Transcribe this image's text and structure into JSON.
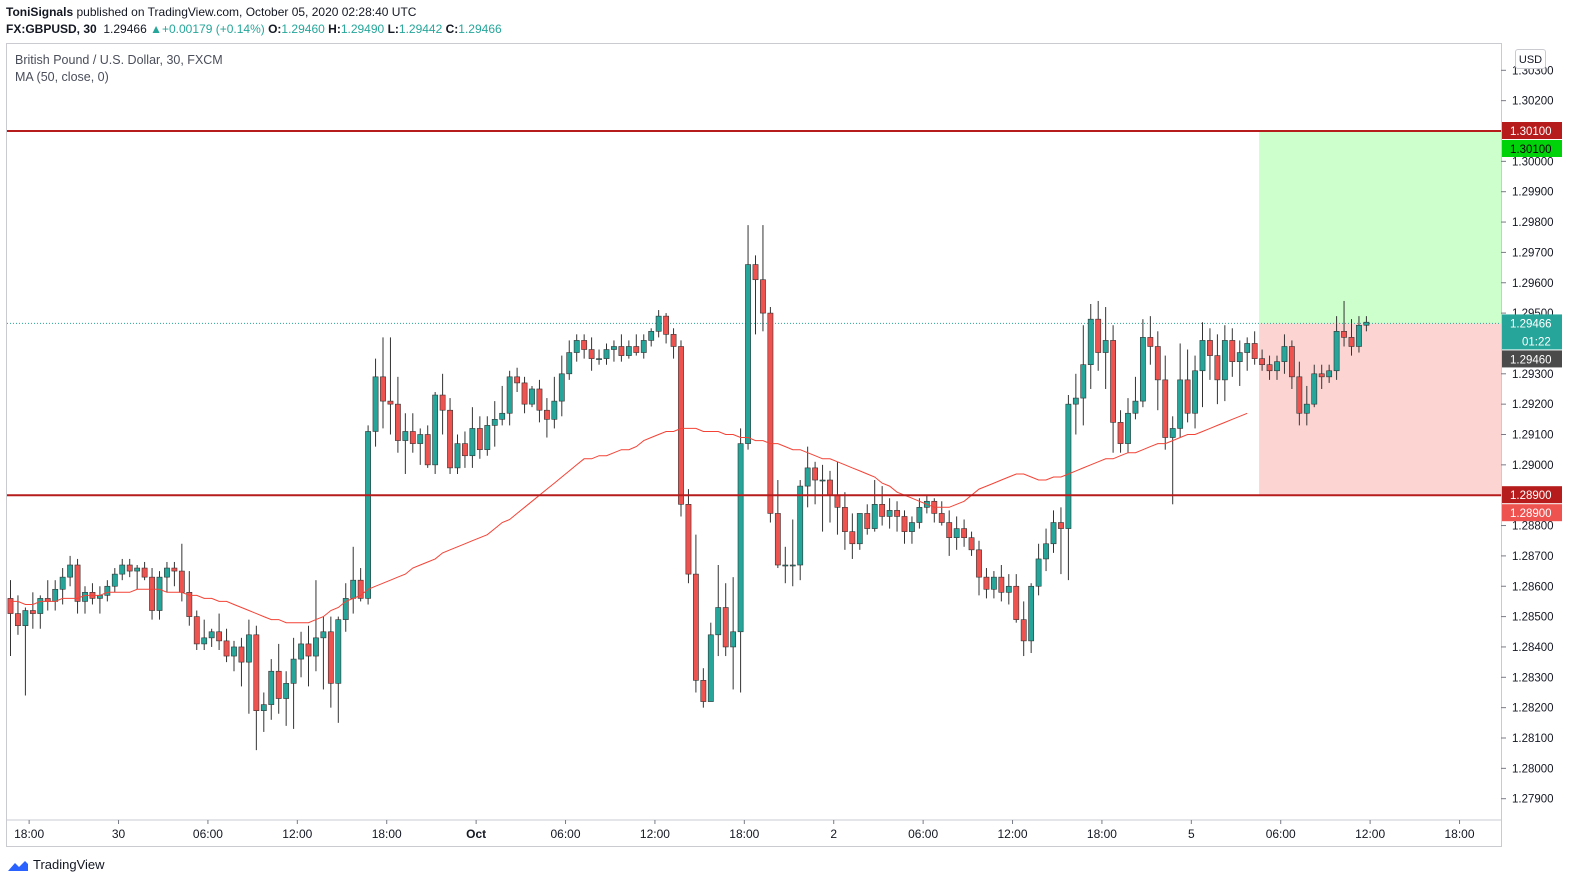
{
  "header": {
    "author": "ToniSignals",
    "published_text": "published on TradingView.com, October 05, 2020 02:28:40 UTC",
    "symbol": "FX:GBPUSD, 30",
    "last": "1.29466",
    "change": "+0.00179 (+0.14%)",
    "o_label": "O:",
    "o": "1.29460",
    "h_label": "H:",
    "h": "1.29490",
    "l_label": "L:",
    "l": "1.29442",
    "c_label": "C:",
    "c": "1.29466"
  },
  "legend": {
    "title": "British Pound / U.S. Dollar, 30, FXCM",
    "indicator": "MA (50, close, 0)"
  },
  "currency_button": "USD",
  "brand": "TradingView",
  "colors": {
    "up": "#26a69a",
    "down": "#ef5350",
    "ma": "#f44336",
    "level": "#b71c1c",
    "target_zone": "#ccffcc",
    "stop_zone": "#fcd5d3",
    "target_tag": "#00d20a",
    "last_tag": "#26a69a",
    "prev_tag": "#4a4a4a"
  },
  "chart_data": {
    "type": "candlestick",
    "symbol": "GBPUSD",
    "timeframe": "30",
    "y_ticks": [
      "1.27900",
      "1.28000",
      "1.28100",
      "1.28200",
      "1.28300",
      "1.28400",
      "1.28500",
      "1.28600",
      "1.28700",
      "1.28800",
      "1.29000",
      "1.29100",
      "1.29200",
      "1.29300",
      "1.29500",
      "1.29600",
      "1.29700",
      "1.29800",
      "1.29900",
      "1.30000",
      "1.30200",
      "1.30300"
    ],
    "x_ticks": [
      {
        "label": "18:00",
        "bar": 2.5
      },
      {
        "label": "30",
        "bar": 14.5
      },
      {
        "label": "06:00",
        "bar": 26.5
      },
      {
        "label": "12:00",
        "bar": 38.5
      },
      {
        "label": "18:00",
        "bar": 50.5
      },
      {
        "label": "Oct",
        "bar": 62.5
      },
      {
        "label": "06:00",
        "bar": 74.5
      },
      {
        "label": "12:00",
        "bar": 86.5
      },
      {
        "label": "18:00",
        "bar": 98.5
      },
      {
        "label": "2",
        "bar": 110.5
      },
      {
        "label": "06:00",
        "bar": 122.5
      },
      {
        "label": "12:00",
        "bar": 134.5
      },
      {
        "label": "18:00",
        "bar": 146.5
      },
      {
        "label": "5",
        "bar": 158.5
      },
      {
        "label": "06:00",
        "bar": 170.5
      },
      {
        "label": "12:00",
        "bar": 182.5
      },
      {
        "label": "18:00",
        "bar": 194.5
      }
    ],
    "levels": [
      {
        "price": 1.301,
        "label": "1.30100"
      },
      {
        "price": 1.289,
        "label": "1.28900"
      }
    ],
    "position": {
      "entry": 1.29466,
      "target": 1.301,
      "stop": 1.289,
      "start_bar": 168,
      "end_bar": 200,
      "target_label": "1.30100",
      "stop_label": "1.28900"
    },
    "last_price": {
      "value": 1.29466,
      "label": "1.29466",
      "countdown": "01:22"
    },
    "prev_price": {
      "value": 1.2946,
      "label": "1.29460"
    },
    "ma": {
      "name": "MA (50, close, 0)",
      "period": 50
    },
    "ma_values": [
      1.2855,
      1.2855,
      1.2854,
      1.2854,
      1.2855,
      1.2855,
      1.2855,
      1.2856,
      1.2856,
      1.2856,
      1.2857,
      1.2857,
      1.2857,
      1.2858,
      1.2858,
      1.2858,
      1.2858,
      1.2859,
      1.2859,
      1.2859,
      1.2859,
      1.2858,
      1.2858,
      1.2858,
      1.2857,
      1.2857,
      1.2856,
      1.2856,
      1.2855,
      1.2855,
      1.2854,
      1.2853,
      1.2852,
      1.2851,
      1.285,
      1.2849,
      1.2849,
      1.2848,
      1.2848,
      1.2848,
      1.2848,
      1.2849,
      1.285,
      1.2852,
      1.2853,
      1.2855,
      1.2856,
      1.2857,
      1.2859,
      1.286,
      1.2861,
      1.2862,
      1.2863,
      1.2864,
      1.2866,
      1.2867,
      1.2868,
      1.2869,
      1.2871,
      1.2872,
      1.2873,
      1.2874,
      1.2875,
      1.2876,
      1.2877,
      1.2879,
      1.2881,
      1.2882,
      1.2884,
      1.2886,
      1.2888,
      1.289,
      1.2892,
      1.2894,
      1.2896,
      1.2898,
      1.29,
      1.2902,
      1.2902,
      1.2903,
      1.2903,
      1.2904,
      1.2905,
      1.2905,
      1.2906,
      1.2908,
      1.2909,
      1.291,
      1.2911,
      1.2911,
      1.2912,
      1.2912,
      1.2912,
      1.2911,
      1.2911,
      1.2911,
      1.291,
      1.291,
      1.2909,
      1.2909,
      1.2908,
      1.2908,
      1.2907,
      1.2907,
      1.2906,
      1.2905,
      1.2905,
      1.2904,
      1.2903,
      1.2902,
      1.2902,
      1.2901,
      1.29,
      1.2899,
      1.2898,
      1.2897,
      1.2896,
      1.2894,
      1.2893,
      1.2891,
      1.289,
      1.2889,
      1.2888,
      1.2887,
      1.2886,
      1.2886,
      1.2886,
      1.2887,
      1.2888,
      1.289,
      1.2892,
      1.2893,
      1.2894,
      1.2895,
      1.2896,
      1.2897,
      1.2897,
      1.2896,
      1.2895,
      1.2895,
      1.2896,
      1.2896,
      1.2897,
      1.2898,
      1.2899,
      1.29,
      1.2901,
      1.2902,
      1.2902,
      1.2903,
      1.2904,
      1.2904,
      1.2905,
      1.2906,
      1.2907,
      1.2907,
      1.2908,
      1.2909,
      1.291,
      1.291,
      1.2911,
      1.2912,
      1.2913,
      1.2914,
      1.2915,
      1.2916,
      1.2917
    ],
    "ohlc": [
      [
        1.2856,
        1.2862,
        1.2837,
        1.2851
      ],
      [
        1.2851,
        1.2857,
        1.2844,
        1.2847
      ],
      [
        1.2847,
        1.2853,
        1.2824,
        1.2852
      ],
      [
        1.2852,
        1.2858,
        1.2846,
        1.2851
      ],
      [
        1.2851,
        1.2857,
        1.2846,
        1.2856
      ],
      [
        1.2856,
        1.2862,
        1.2852,
        1.2855
      ],
      [
        1.2855,
        1.2862,
        1.2852,
        1.2859
      ],
      [
        1.2859,
        1.2866,
        1.2854,
        1.2863
      ],
      [
        1.2863,
        1.287,
        1.286,
        1.2867
      ],
      [
        1.2867,
        1.2869,
        1.2851,
        1.2855
      ],
      [
        1.2855,
        1.286,
        1.2851,
        1.2858
      ],
      [
        1.2858,
        1.2861,
        1.2854,
        1.2856
      ],
      [
        1.2856,
        1.286,
        1.2851,
        1.2857
      ],
      [
        1.2857,
        1.2862,
        1.2855,
        1.286
      ],
      [
        1.286,
        1.2866,
        1.2858,
        1.2864
      ],
      [
        1.2864,
        1.2869,
        1.2862,
        1.2867
      ],
      [
        1.2867,
        1.2869,
        1.2863,
        1.2865
      ],
      [
        1.2865,
        1.2867,
        1.2859,
        1.2866
      ],
      [
        1.2866,
        1.2868,
        1.2862,
        1.2863
      ],
      [
        1.2863,
        1.2866,
        1.2849,
        1.2852
      ],
      [
        1.2852,
        1.2865,
        1.2849,
        1.2863
      ],
      [
        1.2863,
        1.2868,
        1.2858,
        1.2866
      ],
      [
        1.2866,
        1.2868,
        1.286,
        1.2865
      ],
      [
        1.2865,
        1.2874,
        1.2855,
        1.2858
      ],
      [
        1.2858,
        1.2865,
        1.2847,
        1.285
      ],
      [
        1.285,
        1.2852,
        1.2839,
        1.2841
      ],
      [
        1.2841,
        1.2849,
        1.2839,
        1.2843
      ],
      [
        1.2843,
        1.2846,
        1.284,
        1.2845
      ],
      [
        1.2845,
        1.2851,
        1.2839,
        1.2842
      ],
      [
        1.2842,
        1.2846,
        1.2835,
        1.2837
      ],
      [
        1.2837,
        1.2842,
        1.2832,
        1.284
      ],
      [
        1.284,
        1.2843,
        1.2827,
        1.2835
      ],
      [
        1.2835,
        1.2849,
        1.2818,
        1.2844
      ],
      [
        1.2844,
        1.2847,
        1.2806,
        1.2819
      ],
      [
        1.2819,
        1.2825,
        1.2812,
        1.2821
      ],
      [
        1.2821,
        1.2836,
        1.2816,
        1.2832
      ],
      [
        1.2832,
        1.2841,
        1.2818,
        1.2823
      ],
      [
        1.2823,
        1.2832,
        1.2814,
        1.2828
      ],
      [
        1.2828,
        1.2843,
        1.2813,
        1.2836
      ],
      [
        1.2836,
        1.2845,
        1.283,
        1.2841
      ],
      [
        1.2841,
        1.2847,
        1.2827,
        1.2837
      ],
      [
        1.2837,
        1.2862,
        1.2832,
        1.2843
      ],
      [
        1.2843,
        1.285,
        1.2826,
        1.2845
      ],
      [
        1.2845,
        1.285,
        1.282,
        1.2828
      ],
      [
        1.2828,
        1.285,
        1.2815,
        1.2849
      ],
      [
        1.2849,
        1.2861,
        1.2845,
        1.2856
      ],
      [
        1.2856,
        1.2873,
        1.2851,
        1.2862
      ],
      [
        1.2862,
        1.2866,
        1.2855,
        1.2856
      ],
      [
        1.2856,
        1.2913,
        1.2854,
        1.2911
      ],
      [
        1.2911,
        1.2935,
        1.2906,
        1.2929
      ],
      [
        1.2929,
        1.2942,
        1.2912,
        1.2921
      ],
      [
        1.2921,
        1.2942,
        1.291,
        1.292
      ],
      [
        1.292,
        1.2929,
        1.2904,
        1.2908
      ],
      [
        1.2908,
        1.2917,
        1.2897,
        1.2911
      ],
      [
        1.2911,
        1.2917,
        1.2904,
        1.2907
      ],
      [
        1.2907,
        1.2912,
        1.29,
        1.291
      ],
      [
        1.291,
        1.2913,
        1.2899,
        1.29
      ],
      [
        1.29,
        1.2924,
        1.2897,
        1.2923
      ],
      [
        1.2923,
        1.293,
        1.291,
        1.2918
      ],
      [
        1.2918,
        1.2922,
        1.2897,
        1.2899
      ],
      [
        1.2899,
        1.291,
        1.2897,
        1.2907
      ],
      [
        1.2907,
        1.2911,
        1.2899,
        1.2903
      ],
      [
        1.2903,
        1.2919,
        1.2899,
        1.2912
      ],
      [
        1.2912,
        1.2916,
        1.2902,
        1.2905
      ],
      [
        1.2905,
        1.2916,
        1.2903,
        1.2913
      ],
      [
        1.2913,
        1.2921,
        1.2906,
        1.2915
      ],
      [
        1.2915,
        1.2926,
        1.2913,
        1.2917
      ],
      [
        1.2917,
        1.2931,
        1.2913,
        1.2929
      ],
      [
        1.2929,
        1.2932,
        1.2924,
        1.2927
      ],
      [
        1.2927,
        1.2929,
        1.2917,
        1.292
      ],
      [
        1.292,
        1.2926,
        1.2919,
        1.2925
      ],
      [
        1.2925,
        1.2928,
        1.2914,
        1.2918
      ],
      [
        1.2918,
        1.2922,
        1.2909,
        1.2915
      ],
      [
        1.2915,
        1.2929,
        1.2912,
        1.2921
      ],
      [
        1.2921,
        1.2936,
        1.2916,
        1.293
      ],
      [
        1.293,
        1.2941,
        1.2928,
        1.2937
      ],
      [
        1.2937,
        1.2943,
        1.2934,
        1.2941
      ],
      [
        1.2941,
        1.2943,
        1.2935,
        1.2938
      ],
      [
        1.2938,
        1.2942,
        1.2931,
        1.2935
      ],
      [
        1.2935,
        1.2938,
        1.2933,
        1.2935
      ],
      [
        1.2935,
        1.294,
        1.2933,
        1.2938
      ],
      [
        1.2938,
        1.2941,
        1.2934,
        1.2939
      ],
      [
        1.2939,
        1.2943,
        1.2934,
        1.2936
      ],
      [
        1.2936,
        1.2941,
        1.2935,
        1.2939
      ],
      [
        1.2939,
        1.2943,
        1.2936,
        1.2937
      ],
      [
        1.2937,
        1.2943,
        1.2935,
        1.2941
      ],
      [
        1.2941,
        1.2945,
        1.2939,
        1.2944
      ],
      [
        1.2944,
        1.2951,
        1.2942,
        1.2949
      ],
      [
        1.2949,
        1.295,
        1.294,
        1.2943
      ],
      [
        1.2943,
        1.2945,
        1.2935,
        1.2939
      ],
      [
        1.2939,
        1.2941,
        1.2883,
        1.2887
      ],
      [
        1.2887,
        1.2892,
        1.2861,
        1.2864
      ],
      [
        1.2864,
        1.2877,
        1.2825,
        1.2829
      ],
      [
        1.2829,
        1.2833,
        1.282,
        1.2822
      ],
      [
        1.2822,
        1.2848,
        1.2822,
        1.2844
      ],
      [
        1.2844,
        1.2867,
        1.2837,
        1.2853
      ],
      [
        1.2853,
        1.2861,
        1.2837,
        1.284
      ],
      [
        1.284,
        1.2863,
        1.2826,
        1.2845
      ],
      [
        1.2845,
        1.2912,
        1.2825,
        1.2907
      ],
      [
        1.2907,
        1.2979,
        1.2905,
        1.2966
      ],
      [
        1.2966,
        1.2969,
        1.2943,
        1.2961
      ],
      [
        1.2961,
        1.2979,
        1.2944,
        1.295
      ],
      [
        1.295,
        1.2952,
        1.2881,
        1.2884
      ],
      [
        1.2884,
        1.2895,
        1.2866,
        1.2867
      ],
      [
        1.2867,
        1.2873,
        1.2861,
        1.2867
      ],
      [
        1.2867,
        1.2882,
        1.286,
        1.2867
      ],
      [
        1.2867,
        1.2895,
        1.2862,
        1.2893
      ],
      [
        1.2893,
        1.2906,
        1.2886,
        1.2899
      ],
      [
        1.2899,
        1.2901,
        1.2887,
        1.2895
      ],
      [
        1.2895,
        1.29,
        1.2878,
        1.2895
      ],
      [
        1.2895,
        1.2898,
        1.2881,
        1.289
      ],
      [
        1.289,
        1.2901,
        1.2877,
        1.2886
      ],
      [
        1.2886,
        1.2891,
        1.2872,
        1.2878
      ],
      [
        1.2878,
        1.2884,
        1.2869,
        1.2874
      ],
      [
        1.2874,
        1.2884,
        1.2872,
        1.2884
      ],
      [
        1.2884,
        1.2887,
        1.2877,
        1.2879
      ],
      [
        1.2879,
        1.2895,
        1.2878,
        1.2887
      ],
      [
        1.2887,
        1.2893,
        1.288,
        1.2883
      ],
      [
        1.2883,
        1.2889,
        1.2879,
        1.2885
      ],
      [
        1.2885,
        1.2888,
        1.2878,
        1.2883
      ],
      [
        1.2883,
        1.2885,
        1.2874,
        1.2878
      ],
      [
        1.2878,
        1.2883,
        1.2874,
        1.2881
      ],
      [
        1.2881,
        1.2889,
        1.2879,
        1.2886
      ],
      [
        1.2886,
        1.289,
        1.2884,
        1.2888
      ],
      [
        1.2888,
        1.2889,
        1.2881,
        1.2884
      ],
      [
        1.2884,
        1.2888,
        1.288,
        1.2881
      ],
      [
        1.2881,
        1.2885,
        1.287,
        1.2876
      ],
      [
        1.2876,
        1.2883,
        1.2872,
        1.2879
      ],
      [
        1.2879,
        1.2882,
        1.2873,
        1.2876
      ],
      [
        1.2876,
        1.2878,
        1.287,
        1.2872
      ],
      [
        1.2872,
        1.2875,
        1.2857,
        1.2863
      ],
      [
        1.2863,
        1.2866,
        1.2856,
        1.2859
      ],
      [
        1.2859,
        1.2865,
        1.2856,
        1.2863
      ],
      [
        1.2863,
        1.2867,
        1.2855,
        1.2858
      ],
      [
        1.2858,
        1.2864,
        1.2854,
        1.286
      ],
      [
        1.286,
        1.2864,
        1.2848,
        1.2849
      ],
      [
        1.2849,
        1.2855,
        1.2837,
        1.2842
      ],
      [
        1.2842,
        1.2861,
        1.2838,
        1.286
      ],
      [
        1.286,
        1.2874,
        1.2857,
        1.2869
      ],
      [
        1.2869,
        1.2879,
        1.2865,
        1.2874
      ],
      [
        1.2874,
        1.2885,
        1.2871,
        1.2881
      ],
      [
        1.2881,
        1.2886,
        1.2864,
        1.2879
      ],
      [
        1.2879,
        1.2923,
        1.2862,
        1.292
      ],
      [
        1.292,
        1.293,
        1.291,
        1.2922
      ],
      [
        1.2922,
        1.2946,
        1.2913,
        1.2933
      ],
      [
        1.2933,
        1.2953,
        1.2925,
        1.2948
      ],
      [
        1.2948,
        1.2954,
        1.2931,
        1.2937
      ],
      [
        1.2937,
        1.2952,
        1.2925,
        1.2941
      ],
      [
        1.2941,
        1.2946,
        1.2904,
        1.2914
      ],
      [
        1.2914,
        1.2918,
        1.2904,
        1.2907
      ],
      [
        1.2907,
        1.2922,
        1.2904,
        1.2917
      ],
      [
        1.2917,
        1.2929,
        1.2915,
        1.2921
      ],
      [
        1.2921,
        1.2948,
        1.2919,
        1.2942
      ],
      [
        1.2942,
        1.2949,
        1.2933,
        1.2939
      ],
      [
        1.2939,
        1.2944,
        1.2918,
        1.2928
      ],
      [
        1.2928,
        1.2936,
        1.2905,
        1.2909
      ],
      [
        1.2909,
        1.2916,
        1.2887,
        1.2912
      ],
      [
        1.2912,
        1.294,
        1.2909,
        1.2928
      ],
      [
        1.2928,
        1.2938,
        1.2914,
        1.2917
      ],
      [
        1.2917,
        1.2936,
        1.2912,
        1.2931
      ],
      [
        1.2931,
        1.2947,
        1.2919,
        1.2941
      ],
      [
        1.2941,
        1.2945,
        1.2928,
        1.2936
      ],
      [
        1.2936,
        1.2943,
        1.292,
        1.2928
      ],
      [
        1.2928,
        1.2946,
        1.2921,
        1.2941
      ],
      [
        1.2941,
        1.2945,
        1.2929,
        1.2934
      ],
      [
        1.2934,
        1.2941,
        1.2926,
        1.2937
      ],
      [
        1.2937,
        1.2942,
        1.2931,
        1.294
      ],
      [
        1.294,
        1.2944,
        1.2933,
        1.2935
      ],
      [
        1.2935,
        1.2938,
        1.2931,
        1.2933
      ],
      [
        1.2933,
        1.2936,
        1.2928,
        1.2931
      ],
      [
        1.2931,
        1.2936,
        1.2928,
        1.2934
      ],
      [
        1.2934,
        1.2943,
        1.293,
        1.2939
      ],
      [
        1.2939,
        1.2941,
        1.2925,
        1.2929
      ],
      [
        1.2929,
        1.2934,
        1.2913,
        1.2917
      ],
      [
        1.2917,
        1.2926,
        1.2913,
        1.292
      ],
      [
        1.292,
        1.2933,
        1.2919,
        1.293
      ],
      [
        1.293,
        1.2933,
        1.2925,
        1.2929
      ],
      [
        1.2929,
        1.2933,
        1.2927,
        1.2931
      ],
      [
        1.2931,
        1.2949,
        1.2928,
        1.2944
      ],
      [
        1.2944,
        1.2954,
        1.2939,
        1.2942
      ],
      [
        1.2942,
        1.2948,
        1.2936,
        1.2939
      ],
      [
        1.2939,
        1.2949,
        1.2937,
        1.2946
      ],
      [
        1.2946,
        1.2949,
        1.2944,
        1.2947
      ]
    ]
  }
}
